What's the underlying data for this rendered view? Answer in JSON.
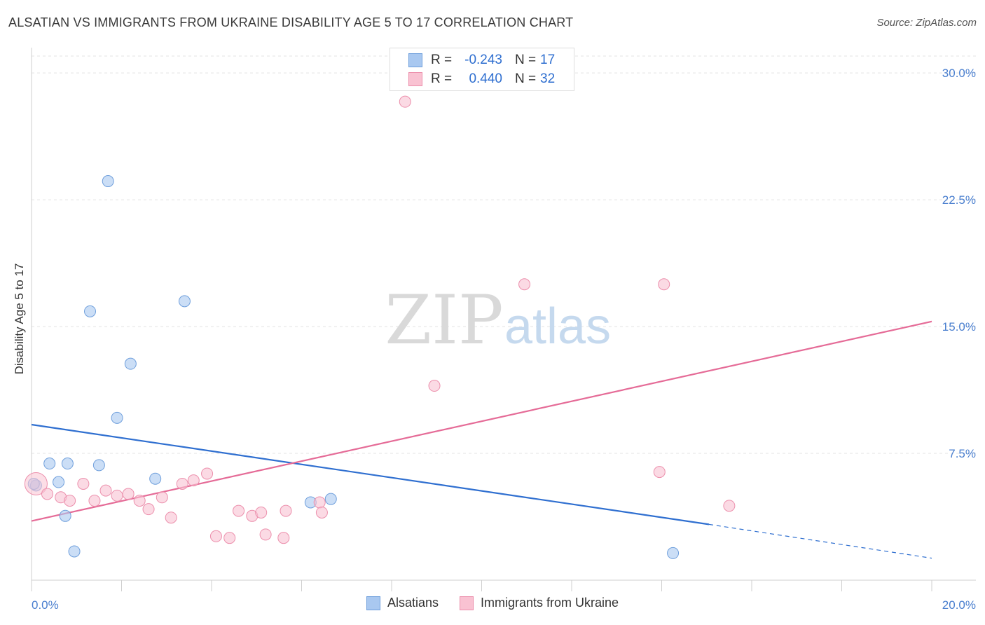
{
  "title": "ALSATIAN VS IMMIGRANTS FROM UKRAINE DISABILITY AGE 5 TO 17 CORRELATION CHART",
  "source": "Source: ZipAtlas.com",
  "watermark": {
    "zip": "ZIP",
    "atlas": "atlas"
  },
  "stats_legend": {
    "r_label": "R =",
    "n_label": "N =",
    "rows": [
      {
        "r": "-0.243",
        "n": "17",
        "color": "#a9c8f0",
        "border": "#6f9fdc"
      },
      {
        "r": "0.440",
        "n": "32",
        "color": "#f9c2d2",
        "border": "#ec8fac"
      }
    ]
  },
  "chart_data": {
    "type": "scatter",
    "title": "ALSATIAN VS IMMIGRANTS FROM UKRAINE DISABILITY AGE 5 TO 17 CORRELATION CHART",
    "xlabel": "",
    "ylabel": "Disability Age 5 to 17",
    "xlim": [
      0,
      20
    ],
    "ylim": [
      0,
      31
    ],
    "x_tick_labels": [
      "0.0%",
      "20.0%"
    ],
    "y_ticks": [
      7.5,
      15.0,
      22.5,
      30.0
    ],
    "y_tick_labels": [
      "7.5%",
      "15.0%",
      "22.5%",
      "30.0%"
    ],
    "grid": true,
    "legend_position": "bottom",
    "series": [
      {
        "name": "Alsatians",
        "color": "#a9c8f0",
        "stroke": "#6f9fdc",
        "line_color": "#2f6fd0",
        "points": [
          [
            0.1,
            5.6
          ],
          [
            0.4,
            6.9
          ],
          [
            0.6,
            5.8
          ],
          [
            0.8,
            6.9
          ],
          [
            0.75,
            3.8
          ],
          [
            0.95,
            1.7
          ],
          [
            1.3,
            15.9
          ],
          [
            1.5,
            6.8
          ],
          [
            1.7,
            23.6
          ],
          [
            1.9,
            9.6
          ],
          [
            2.2,
            12.8
          ],
          [
            2.75,
            6.0
          ],
          [
            3.4,
            16.5
          ],
          [
            6.2,
            4.6
          ],
          [
            6.65,
            4.8
          ],
          [
            14.25,
            1.6
          ],
          [
            0.05,
            5.7
          ]
        ],
        "trend": {
          "x0": 0,
          "y0": 9.2,
          "x1": 15.05,
          "y1": 3.3,
          "dash_to_x": 20,
          "dash_to_y": 1.3
        }
      },
      {
        "name": "Immigrants from Ukraine",
        "color": "#f9c2d2",
        "stroke": "#ec8fac",
        "line_color": "#e56b97",
        "points": [
          [
            0.1,
            5.7
          ],
          [
            0.35,
            5.1
          ],
          [
            0.65,
            4.9
          ],
          [
            0.85,
            4.7
          ],
          [
            1.15,
            5.7
          ],
          [
            1.4,
            4.7
          ],
          [
            1.65,
            5.3
          ],
          [
            1.9,
            5.0
          ],
          [
            2.15,
            5.1
          ],
          [
            2.4,
            4.7
          ],
          [
            2.6,
            4.2
          ],
          [
            2.9,
            4.9
          ],
          [
            3.1,
            3.7
          ],
          [
            3.35,
            5.7
          ],
          [
            3.6,
            5.9
          ],
          [
            3.9,
            6.3
          ],
          [
            4.1,
            2.6
          ],
          [
            4.4,
            2.5
          ],
          [
            4.6,
            4.1
          ],
          [
            4.9,
            3.8
          ],
          [
            5.1,
            4.0
          ],
          [
            5.2,
            2.7
          ],
          [
            5.6,
            2.5
          ],
          [
            5.65,
            4.1
          ],
          [
            6.4,
            4.6
          ],
          [
            6.45,
            4.0
          ],
          [
            8.3,
            28.3
          ],
          [
            8.95,
            11.5
          ],
          [
            10.95,
            17.5
          ],
          [
            13.95,
            6.4
          ],
          [
            14.05,
            17.5
          ],
          [
            15.5,
            4.4
          ]
        ],
        "trend": {
          "x0": 0,
          "y0": 3.5,
          "x1": 20,
          "y1": 15.3
        }
      }
    ]
  }
}
